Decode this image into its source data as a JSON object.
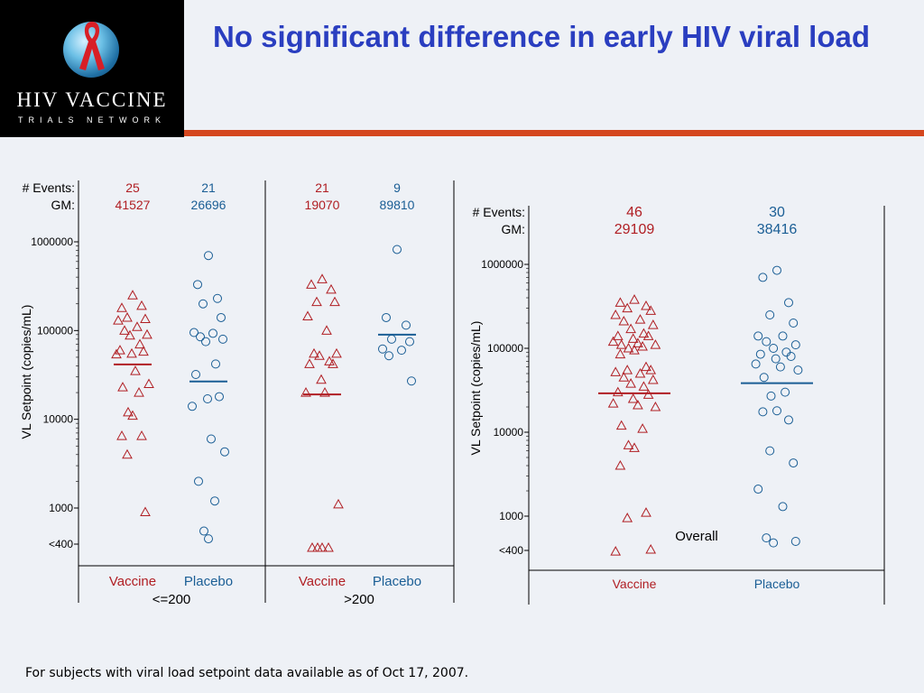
{
  "logo": {
    "title": "HIV VACCINE",
    "subtitle": "TRIALS NETWORK"
  },
  "slide": {
    "title": "No significant difference in early HIV viral load",
    "footnote": "For subjects with viral load setpoint data available as of Oct 17, 2007."
  },
  "colors": {
    "vaccine": "#b01e23",
    "placebo": "#1a5e95",
    "title": "#2a3ec0",
    "accent_bar": "#d4471f",
    "background": "#eef1f6"
  },
  "chart_data": [
    {
      "type": "scatter",
      "panel": "by-setpoint-stratum",
      "ylabel": "VL Setpoint (copies/mL)",
      "yscale": "log",
      "ylim": [
        200,
        2000000
      ],
      "yticks": [
        {
          "value": 1000000,
          "label": "1000000"
        },
        {
          "value": 100000,
          "label": "100000"
        },
        {
          "value": 10000,
          "label": "10000"
        },
        {
          "value": 1000,
          "label": "1000"
        },
        {
          "value": 400,
          "label": "<400"
        }
      ],
      "row_labels": {
        "events": "# Events:",
        "gm": "GM:"
      },
      "groups": [
        {
          "label": "Vaccine",
          "stratum": "<=200",
          "marker": "triangle",
          "color": "#b01e23",
          "events": "25",
          "gm": "41527",
          "gm_value": 41527,
          "values": [
            250000,
            180000,
            190000,
            140000,
            135000,
            130000,
            110000,
            100000,
            90000,
            88000,
            70000,
            60000,
            58000,
            55000,
            54000,
            35000,
            25000,
            23000,
            20000,
            12000,
            11000,
            6500,
            6500,
            4000,
            900
          ]
        },
        {
          "label": "Placebo",
          "stratum": "<=200",
          "marker": "circle",
          "color": "#1a5e95",
          "events": "21",
          "gm": "26696",
          "gm_value": 26696,
          "values": [
            700000,
            330000,
            230000,
            200000,
            140000,
            95000,
            93000,
            85000,
            80000,
            75000,
            42000,
            32000,
            18000,
            17000,
            14000,
            6000,
            4300,
            2000,
            1200,
            550,
            450
          ]
        },
        {
          "label": "Vaccine",
          "stratum": ">200",
          "marker": "triangle",
          "color": "#b01e23",
          "events": "21",
          "gm": "19070",
          "gm_value": 19070,
          "values": [
            380000,
            330000,
            290000,
            210000,
            210000,
            145000,
            100000,
            55000,
            55000,
            52000,
            45000,
            42000,
            42000,
            28000,
            20000,
            20000,
            1100,
            350,
            340,
            310,
            300
          ]
        },
        {
          "label": "Placebo",
          "stratum": ">200",
          "marker": "circle",
          "color": "#1a5e95",
          "events": "9",
          "gm": "89810",
          "gm_value": 89810,
          "values": [
            820000,
            140000,
            115000,
            80000,
            75000,
            62000,
            60000,
            52000,
            27000
          ]
        }
      ],
      "category_labels": [
        "Vaccine",
        "Placebo",
        "Vaccine",
        "Placebo"
      ],
      "strata": [
        "<=200",
        ">200"
      ]
    },
    {
      "type": "scatter",
      "panel": "overall",
      "panel_label": "Overall",
      "ylabel": "VL Setpoint (copies/mL)",
      "yscale": "log",
      "ylim": [
        200,
        2000000
      ],
      "yticks": [
        {
          "value": 1000000,
          "label": "1000000"
        },
        {
          "value": 100000,
          "label": "100000"
        },
        {
          "value": 10000,
          "label": "10000"
        },
        {
          "value": 1000,
          "label": "1000"
        },
        {
          "value": 400,
          "label": "<400"
        }
      ],
      "row_labels": {
        "events": "# Events:",
        "gm": "GM:"
      },
      "groups": [
        {
          "label": "Vaccine",
          "marker": "triangle",
          "color": "#b01e23",
          "events": "46",
          "gm": "29109",
          "gm_value": 29109,
          "values": [
            380000,
            350000,
            320000,
            300000,
            280000,
            250000,
            220000,
            210000,
            190000,
            170000,
            150000,
            140000,
            140000,
            130000,
            120000,
            115000,
            110000,
            110000,
            105000,
            100000,
            95000,
            85000,
            60000,
            55000,
            55000,
            52000,
            50000,
            45000,
            42000,
            38000,
            35000,
            30000,
            28000,
            25000,
            22000,
            21000,
            20000,
            12000,
            11000,
            7000,
            6500,
            4000,
            1100,
            950,
            400,
            380
          ]
        },
        {
          "label": "Placebo",
          "marker": "circle",
          "color": "#1a5e95",
          "events": "30",
          "gm": "38416",
          "gm_value": 38416,
          "values": [
            850000,
            700000,
            350000,
            250000,
            200000,
            140000,
            140000,
            120000,
            110000,
            100000,
            90000,
            85000,
            80000,
            75000,
            65000,
            60000,
            55000,
            45000,
            30000,
            27000,
            18000,
            17500,
            14000,
            6000,
            4300,
            2100,
            1300,
            550,
            500,
            480
          ]
        }
      ],
      "category_labels": [
        "Vaccine",
        "Placebo"
      ]
    }
  ]
}
